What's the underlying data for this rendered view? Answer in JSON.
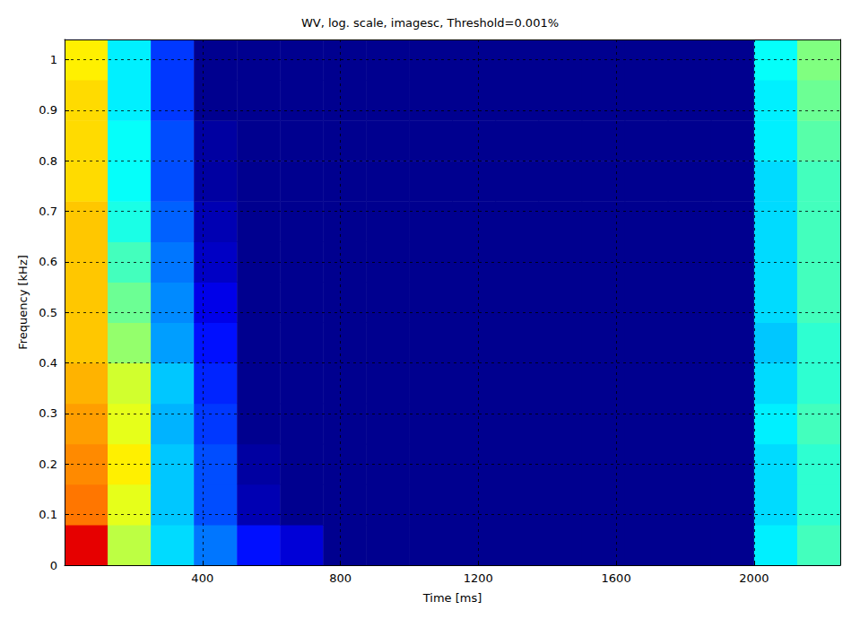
{
  "chart_data": {
    "type": "heatmap",
    "title": "WV, log. scale, imagesc, Threshold=0.001%",
    "x_label": "Time [ms]",
    "y_label": "Frequency [kHz]",
    "xlim": [
      0,
      2250
    ],
    "ylim": [
      0,
      1.04
    ],
    "xticks": [
      400,
      800,
      1200,
      1600,
      2000
    ],
    "yticks": [
      0,
      0.1,
      0.2,
      0.3,
      0.4,
      0.5,
      0.6,
      0.7,
      0.8,
      0.9,
      1
    ],
    "grid": true,
    "x_edges": [
      0,
      125,
      250,
      375,
      500,
      625,
      750,
      875,
      1000,
      1125,
      1250,
      1375,
      1500,
      1625,
      1750,
      1875,
      2000,
      2125,
      2250
    ],
    "y_edges": [
      0,
      0.08,
      0.16,
      0.24,
      0.32,
      0.4,
      0.48,
      0.56,
      0.64,
      0.72,
      0.8,
      0.88,
      0.96,
      1.04
    ],
    "zlim": [
      -5,
      0
    ],
    "values": [
      [
        -0.5,
        -2.2,
        -3.3,
        -3.8,
        -4.3,
        -4.6,
        -5,
        -5,
        -5,
        -5,
        -5,
        -5,
        -5,
        -5,
        -5,
        -5,
        -3.2,
        -2.8
      ],
      [
        -1.2,
        -2.0,
        -3.4,
        -4.0,
        -4.8,
        -5,
        -5,
        -5,
        -5,
        -5,
        -5,
        -5,
        -5,
        -5,
        -5,
        -5,
        -3.3,
        -2.9
      ],
      [
        -1.3,
        -1.8,
        -3.4,
        -4.0,
        -4.9,
        -5,
        -5,
        -5,
        -5,
        -5,
        -5,
        -5,
        -5,
        -5,
        -5,
        -5,
        -3.3,
        -2.9
      ],
      [
        -1.4,
        -2.0,
        -3.5,
        -4.1,
        -5,
        -5,
        -5,
        -5,
        -5,
        -5,
        -5,
        -5,
        -5,
        -5,
        -5,
        -5,
        -3.2,
        -2.8
      ],
      [
        -1.5,
        -2.1,
        -3.4,
        -4.2,
        -5,
        -5,
        -5,
        -5,
        -5,
        -5,
        -5,
        -5,
        -5,
        -5,
        -5,
        -5,
        -3.3,
        -2.9
      ],
      [
        -1.6,
        -2.4,
        -3.6,
        -4.3,
        -5,
        -5,
        -5,
        -5,
        -5,
        -5,
        -5,
        -5,
        -5,
        -5,
        -5,
        -5,
        -3.4,
        -2.9
      ],
      [
        -1.6,
        -2.6,
        -3.7,
        -4.5,
        -5,
        -5,
        -5,
        -5,
        -5,
        -5,
        -5,
        -5,
        -5,
        -5,
        -5,
        -5,
        -3.3,
        -2.8
      ],
      [
        -1.6,
        -2.8,
        -3.8,
        -4.7,
        -5,
        -5,
        -5,
        -5,
        -5,
        -5,
        -5,
        -5,
        -5,
        -5,
        -5,
        -5,
        -3.3,
        -2.8
      ],
      [
        -1.6,
        -3.0,
        -3.9,
        -4.8,
        -5,
        -5,
        -5,
        -5,
        -5,
        -5,
        -5,
        -5,
        -5,
        -5,
        -5,
        -5,
        -3.3,
        -2.8
      ],
      [
        -1.7,
        -3.1,
        -4.0,
        -4.9,
        -5,
        -5,
        -5,
        -5,
        -5,
        -5,
        -5,
        -5,
        -5,
        -5,
        -5,
        -5,
        -3.3,
        -2.8
      ],
      [
        -1.7,
        -3.1,
        -4.0,
        -4.9,
        -5,
        -5,
        -5,
        -5,
        -5,
        -5,
        -5,
        -5,
        -5,
        -5,
        -5,
        -5,
        -3.2,
        -2.7
      ],
      [
        -1.7,
        -3.2,
        -4.1,
        -5,
        -5,
        -5,
        -5,
        -5,
        -5,
        -5,
        -5,
        -5,
        -5,
        -5,
        -5,
        -5,
        -3.2,
        -2.6
      ],
      [
        -1.8,
        -3.2,
        -4.1,
        -5,
        -5,
        -5,
        -5,
        -5,
        -5,
        -5,
        -5,
        -5,
        -5,
        -5,
        -5,
        -5,
        -3.1,
        -2.5
      ]
    ]
  }
}
